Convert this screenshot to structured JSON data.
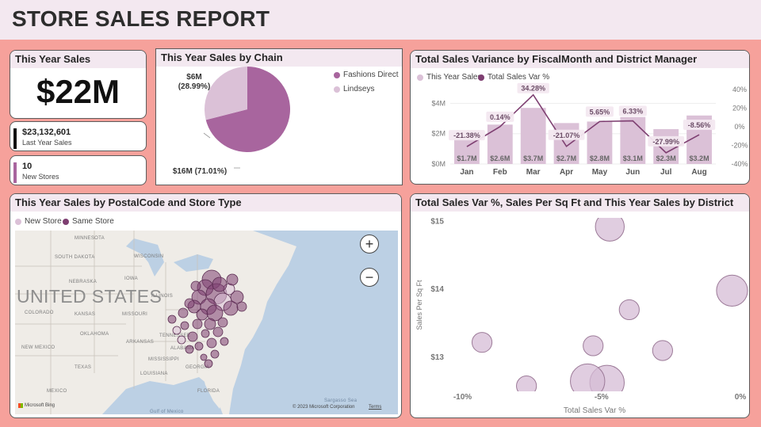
{
  "report": {
    "title": "STORE SALES REPORT"
  },
  "kpi": {
    "title": "This Year Sales",
    "value": "$22M",
    "last_year_value": "$23,132,601",
    "last_year_label": "Last Year Sales",
    "new_stores_value": "10",
    "new_stores_label": "New Stores"
  },
  "pie": {
    "title": "This Year Sales by Chain",
    "legend": [
      "Fashions Direct",
      "Lindseys"
    ],
    "label_small_line1": "$6M",
    "label_small_line2": "(28.99%)",
    "label_large": "$16M (71.01%)"
  },
  "variance": {
    "title": "Total Sales Variance by FiscalMonth and District Manager",
    "legend": [
      "This Year Sales",
      "Total Sales Var %"
    ]
  },
  "map": {
    "title": "This Year Sales by PostalCode and Store Type",
    "legend": [
      "New Store",
      "Same Store"
    ],
    "zoom_in": "+",
    "zoom_out": "−",
    "country_label": "UNITED STATES",
    "state_labels": [
      "MINNESOTA",
      "SOUTH DAKOTA",
      "WISCONSIN",
      "NEBRASKA",
      "IOWA",
      "ILLINOIS",
      "KANSAS",
      "COLORADO",
      "MISSOURI",
      "OKLAHOMA",
      "ARKANSAS",
      "NEW MEXICO",
      "TEXAS",
      "MISSISSIPPI",
      "ALABAMA",
      "GEORGIA",
      "TENNESSEE",
      "LOUISIANA",
      "MEXICO",
      "FLORIDA"
    ],
    "sea_label": "Sargasso Sea",
    "gulf_label": "Gulf of Mexico",
    "bing_label": "Microsoft Bing",
    "copyright": "© 2023 Microsoft Corporation",
    "terms": "Terms"
  },
  "scatter": {
    "title": "Total Sales Var %, Sales Per Sq Ft and This Year Sales by District"
  },
  "colors": {
    "accent_dark": "#7e3f71",
    "accent_mid": "#a8659e",
    "accent_light": "#dbc1d7",
    "bubble": "#d6bcd5",
    "background": "#f6a19b",
    "header": "#f3e8f0"
  },
  "chart_data": [
    {
      "type": "pie",
      "title": "This Year Sales by Chain",
      "categories": [
        "Fashions Direct",
        "Lindseys"
      ],
      "values": [
        16,
        6
      ],
      "percentages": [
        71.01,
        28.99
      ],
      "unit": "$M"
    },
    {
      "type": "bar",
      "title": "Total Sales Variance by FiscalMonth and District Manager",
      "categories": [
        "Jan",
        "Feb",
        "Mar",
        "Apr",
        "May",
        "Jun",
        "Jul",
        "Aug"
      ],
      "series": [
        {
          "name": "This Year Sales",
          "type": "bar",
          "values": [
            1.7,
            2.6,
            3.7,
            2.7,
            2.8,
            3.1,
            2.3,
            3.2
          ],
          "labels": [
            "$1.7M",
            "$2.6M",
            "$3.7M",
            "$2.7M",
            "$2.8M",
            "$3.1M",
            "$2.3M",
            "$3.2M"
          ]
        },
        {
          "name": "Total Sales Var %",
          "type": "line",
          "values": [
            -21.38,
            0.14,
            34.28,
            -21.07,
            5.65,
            6.33,
            -27.99,
            -8.56
          ],
          "labels": [
            "-21.38%",
            "0.14%",
            "34.28%",
            "-21.07%",
            "5.65%",
            "6.33%",
            "-27.99%",
            "-8.56%"
          ]
        }
      ],
      "y_left": {
        "ticks": [
          "$0M",
          "$2M",
          "$4M"
        ],
        "values": [
          0,
          2,
          4
        ],
        "range": [
          0,
          4.6
        ]
      },
      "y_right": {
        "ticks": [
          "40%",
          "20%",
          "0%",
          "-20%",
          "-40%"
        ],
        "values": [
          40,
          20,
          0,
          -20,
          -40
        ],
        "range": [
          -40,
          40
        ]
      }
    },
    {
      "type": "scatter",
      "title": "Total Sales Var %, Sales Per Sq Ft and This Year Sales by District",
      "xlabel": "Total Sales Var %",
      "ylabel": "Sales Per Sq Ft",
      "x_ticks": [
        "-10%",
        "-5%",
        "0%"
      ],
      "x_tick_values": [
        -10,
        -5,
        0
      ],
      "y_ticks": [
        "$15",
        "$14",
        "$13"
      ],
      "y_tick_values": [
        15,
        14,
        13
      ],
      "xlim": [
        -10.5,
        0
      ],
      "ylim": [
        12.5,
        15.05
      ],
      "points": [
        {
          "x": -4.7,
          "y": 14.92,
          "size": 1.3
        },
        {
          "x": -0.3,
          "y": 13.98,
          "size": 1.4
        },
        {
          "x": -4.8,
          "y": 12.63,
          "size": 1.55
        },
        {
          "x": -4.0,
          "y": 13.7,
          "size": 0.9
        },
        {
          "x": -9.3,
          "y": 13.22,
          "size": 0.9
        },
        {
          "x": -5.3,
          "y": 13.17,
          "size": 0.9
        },
        {
          "x": -2.8,
          "y": 13.1,
          "size": 0.9
        },
        {
          "x": -7.7,
          "y": 12.58,
          "size": 0.9
        },
        {
          "x": -5.5,
          "y": 12.65,
          "size": 1.55
        }
      ]
    }
  ]
}
